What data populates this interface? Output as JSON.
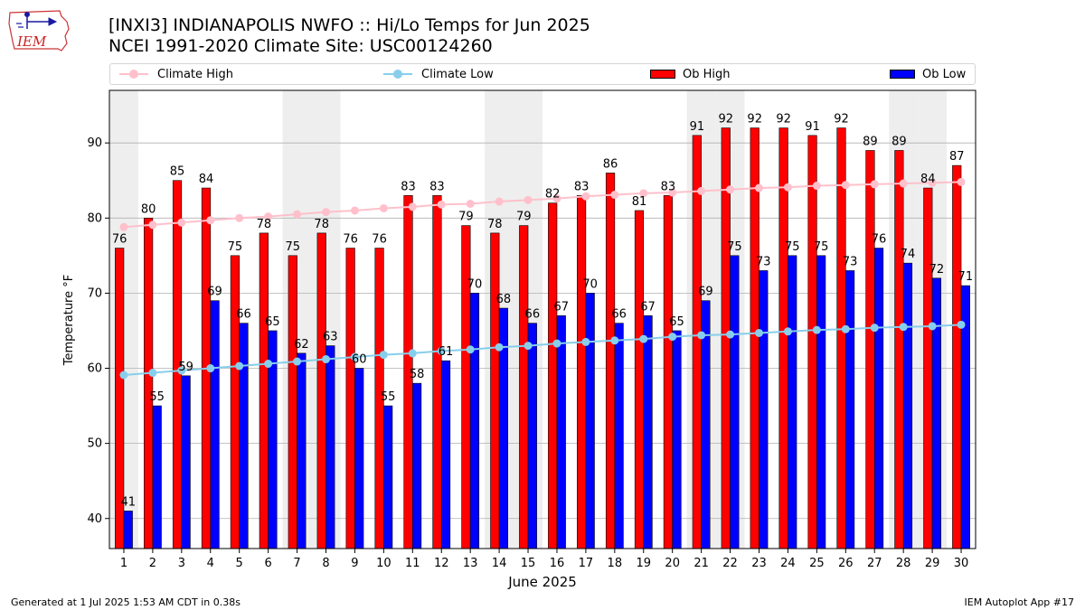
{
  "logo": {
    "text": "IEM"
  },
  "header": {
    "title_line1": "[INXI3] INDIANAPOLIS NWFO :: Hi/Lo Temps for Jun 2025",
    "title_line2": "NCEI 1991-2020 Climate Site: USC00124260"
  },
  "legend": {
    "climate_high": "Climate High",
    "climate_low": "Climate Low",
    "ob_high": "Ob High",
    "ob_low": "Ob Low"
  },
  "colors": {
    "climate_high": "#ffc0cb",
    "climate_low": "#87ceeb",
    "ob_high": "#ff0000",
    "ob_low": "#0000ff",
    "weekend_shade": "#eeeeee"
  },
  "chart_data": {
    "type": "bar",
    "xlabel": "June 2025",
    "ylabel": "Temperature °F",
    "ylim": [
      36,
      97
    ],
    "yticks": [
      40,
      50,
      60,
      70,
      80,
      90
    ],
    "grid": true,
    "legend_position": "top",
    "categories": [
      "1",
      "2",
      "3",
      "4",
      "5",
      "6",
      "7",
      "8",
      "9",
      "10",
      "11",
      "12",
      "13",
      "14",
      "15",
      "16",
      "17",
      "18",
      "19",
      "20",
      "21",
      "22",
      "23",
      "24",
      "25",
      "26",
      "27",
      "28",
      "29",
      "30"
    ],
    "weekend_days": [
      1,
      7,
      8,
      14,
      15,
      21,
      22,
      28,
      29
    ],
    "series": [
      {
        "name": "Ob High",
        "kind": "bar",
        "values": [
          76,
          80,
          85,
          84,
          75,
          78,
          75,
          78,
          76,
          76,
          83,
          83,
          79,
          78,
          79,
          82,
          83,
          86,
          81,
          83,
          91,
          92,
          92,
          92,
          91,
          92,
          89,
          89,
          84,
          87
        ]
      },
      {
        "name": "Ob Low",
        "kind": "bar",
        "values": [
          41,
          55,
          59,
          69,
          66,
          65,
          62,
          63,
          60,
          55,
          58,
          61,
          70,
          68,
          66,
          67,
          70,
          66,
          67,
          65,
          69,
          75,
          73,
          75,
          75,
          73,
          76,
          74,
          72,
          71
        ]
      },
      {
        "name": "Climate High",
        "kind": "line",
        "values": [
          78.8,
          79.1,
          79.4,
          79.7,
          80.0,
          80.2,
          80.5,
          80.8,
          81.0,
          81.3,
          81.5,
          81.8,
          81.9,
          82.2,
          82.4,
          82.6,
          82.9,
          83.1,
          83.3,
          83.4,
          83.6,
          83.8,
          84.0,
          84.1,
          84.3,
          84.4,
          84.5,
          84.6,
          84.7,
          84.8
        ]
      },
      {
        "name": "Climate Low",
        "kind": "line",
        "values": [
          59.1,
          59.4,
          59.7,
          60.0,
          60.3,
          60.6,
          60.9,
          61.2,
          61.5,
          61.8,
          62.0,
          62.3,
          62.5,
          62.8,
          63.0,
          63.3,
          63.5,
          63.7,
          63.9,
          64.2,
          64.4,
          64.5,
          64.7,
          64.9,
          65.1,
          65.2,
          65.4,
          65.5,
          65.6,
          65.8
        ]
      }
    ]
  },
  "footer": {
    "generated": "Generated at 1 Jul 2025 1:53 AM CDT in 0.38s",
    "app": "IEM Autoplot App #17"
  }
}
